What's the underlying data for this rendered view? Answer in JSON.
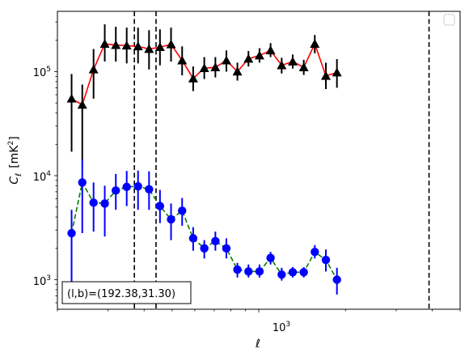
{
  "chart_data": {
    "type": "scatter",
    "xscale": "log",
    "yscale": "log",
    "xlim": [
      200,
      5000
    ],
    "ylim": [
      520,
      380000
    ],
    "xlabel": "ℓ",
    "ylabel": "C_ℓ [mK²]",
    "ylabel_main": "C",
    "ylabel_sub": "ℓ",
    "ylabel_unit": "[mK",
    "ylabel_unit_sup": "2",
    "ylabel_unit_end": "]",
    "x_tick_labels": [
      {
        "value": 1000,
        "base": "10",
        "exp": "3"
      }
    ],
    "y_tick_labels": [
      {
        "value": 1000,
        "base": "10",
        "exp": "3"
      },
      {
        "value": 10000,
        "base": "10",
        "exp": "4"
      },
      {
        "value": 100000,
        "base": "10",
        "exp": "5"
      }
    ],
    "grid": false,
    "legend": "top-right (empty)",
    "annotation": "(l,b)=(192.38,31.30)",
    "vlines_x": [
      370,
      440,
      3900
    ],
    "series": [
      {
        "marker": "triangle",
        "marker_color": "#000000",
        "line_color": "#ff0000",
        "line_style": "solid",
        "points": [
          {
            "x": 224,
            "y": 55000,
            "lo": 17000,
            "hi": 95000
          },
          {
            "x": 244,
            "y": 48000,
            "lo": 14000,
            "hi": 75000
          },
          {
            "x": 267,
            "y": 105000,
            "lo": 55000,
            "hi": 165000
          },
          {
            "x": 292,
            "y": 185000,
            "lo": 125000,
            "hi": 285000
          },
          {
            "x": 319,
            "y": 180000,
            "lo": 125000,
            "hi": 270000
          },
          {
            "x": 348,
            "y": 178000,
            "lo": 120000,
            "hi": 265000
          },
          {
            "x": 381,
            "y": 175000,
            "lo": 120000,
            "hi": 265000
          },
          {
            "x": 416,
            "y": 165000,
            "lo": 105000,
            "hi": 250000
          },
          {
            "x": 454,
            "y": 172000,
            "lo": 115000,
            "hi": 255000
          },
          {
            "x": 496,
            "y": 183000,
            "lo": 125000,
            "hi": 265000
          },
          {
            "x": 542,
            "y": 128000,
            "lo": 92000,
            "hi": 175000
          },
          {
            "x": 592,
            "y": 86000,
            "lo": 65000,
            "hi": 112000
          },
          {
            "x": 647,
            "y": 108000,
            "lo": 85000,
            "hi": 138000
          },
          {
            "x": 707,
            "y": 110000,
            "lo": 88000,
            "hi": 138000
          },
          {
            "x": 772,
            "y": 128000,
            "lo": 100000,
            "hi": 160000
          },
          {
            "x": 843,
            "y": 100000,
            "lo": 82000,
            "hi": 122000
          },
          {
            "x": 921,
            "y": 133000,
            "lo": 112000,
            "hi": 158000
          },
          {
            "x": 1006,
            "y": 143000,
            "lo": 122000,
            "hi": 168000
          },
          {
            "x": 1099,
            "y": 160000,
            "lo": 138000,
            "hi": 188000
          },
          {
            "x": 1201,
            "y": 115000,
            "lo": 96000,
            "hi": 136000
          },
          {
            "x": 1312,
            "y": 125000,
            "lo": 107000,
            "hi": 146000
          },
          {
            "x": 1433,
            "y": 110000,
            "lo": 93000,
            "hi": 130000
          },
          {
            "x": 1565,
            "y": 185000,
            "lo": 150000,
            "hi": 225000
          },
          {
            "x": 1710,
            "y": 91000,
            "lo": 68000,
            "hi": 122000
          },
          {
            "x": 1868,
            "y": 98000,
            "lo": 70000,
            "hi": 132000
          }
        ]
      },
      {
        "marker": "circle",
        "marker_color": "#0000ff",
        "line_color": "#008000",
        "line_style": "dashed",
        "points": [
          {
            "x": 224,
            "y": 2800,
            "lo": 600,
            "hi": 4700
          },
          {
            "x": 244,
            "y": 8600,
            "lo": 2800,
            "hi": 14400
          },
          {
            "x": 267,
            "y": 5500,
            "lo": 2900,
            "hi": 8600
          },
          {
            "x": 292,
            "y": 5400,
            "lo": 2600,
            "hi": 8000
          },
          {
            "x": 319,
            "y": 7200,
            "lo": 4700,
            "hi": 10400
          },
          {
            "x": 348,
            "y": 7800,
            "lo": 5100,
            "hi": 11100
          },
          {
            "x": 381,
            "y": 7900,
            "lo": 4700,
            "hi": 11200
          },
          {
            "x": 416,
            "y": 7400,
            "lo": 4700,
            "hi": 11000
          },
          {
            "x": 454,
            "y": 5100,
            "lo": 3500,
            "hi": 7300
          },
          {
            "x": 496,
            "y": 3800,
            "lo": 2400,
            "hi": 5400
          },
          {
            "x": 542,
            "y": 4600,
            "lo": 3300,
            "hi": 6100
          },
          {
            "x": 592,
            "y": 2500,
            "lo": 1900,
            "hi": 3200
          },
          {
            "x": 647,
            "y": 2000,
            "lo": 1600,
            "hi": 2400
          },
          {
            "x": 707,
            "y": 2350,
            "lo": 1900,
            "hi": 2900
          },
          {
            "x": 772,
            "y": 2000,
            "lo": 1600,
            "hi": 2500
          },
          {
            "x": 843,
            "y": 1250,
            "lo": 1050,
            "hi": 1450
          },
          {
            "x": 921,
            "y": 1200,
            "lo": 1050,
            "hi": 1400
          },
          {
            "x": 1006,
            "y": 1200,
            "lo": 1050,
            "hi": 1400
          },
          {
            "x": 1099,
            "y": 1620,
            "lo": 1400,
            "hi": 1850
          },
          {
            "x": 1201,
            "y": 1120,
            "lo": 980,
            "hi": 1300
          },
          {
            "x": 1312,
            "y": 1180,
            "lo": 1050,
            "hi": 1320
          },
          {
            "x": 1433,
            "y": 1180,
            "lo": 1050,
            "hi": 1320
          },
          {
            "x": 1565,
            "y": 1850,
            "lo": 1600,
            "hi": 2150
          },
          {
            "x": 1710,
            "y": 1550,
            "lo": 1200,
            "hi": 1950
          },
          {
            "x": 1868,
            "y": 1000,
            "lo": 720,
            "hi": 1300
          }
        ]
      }
    ]
  }
}
